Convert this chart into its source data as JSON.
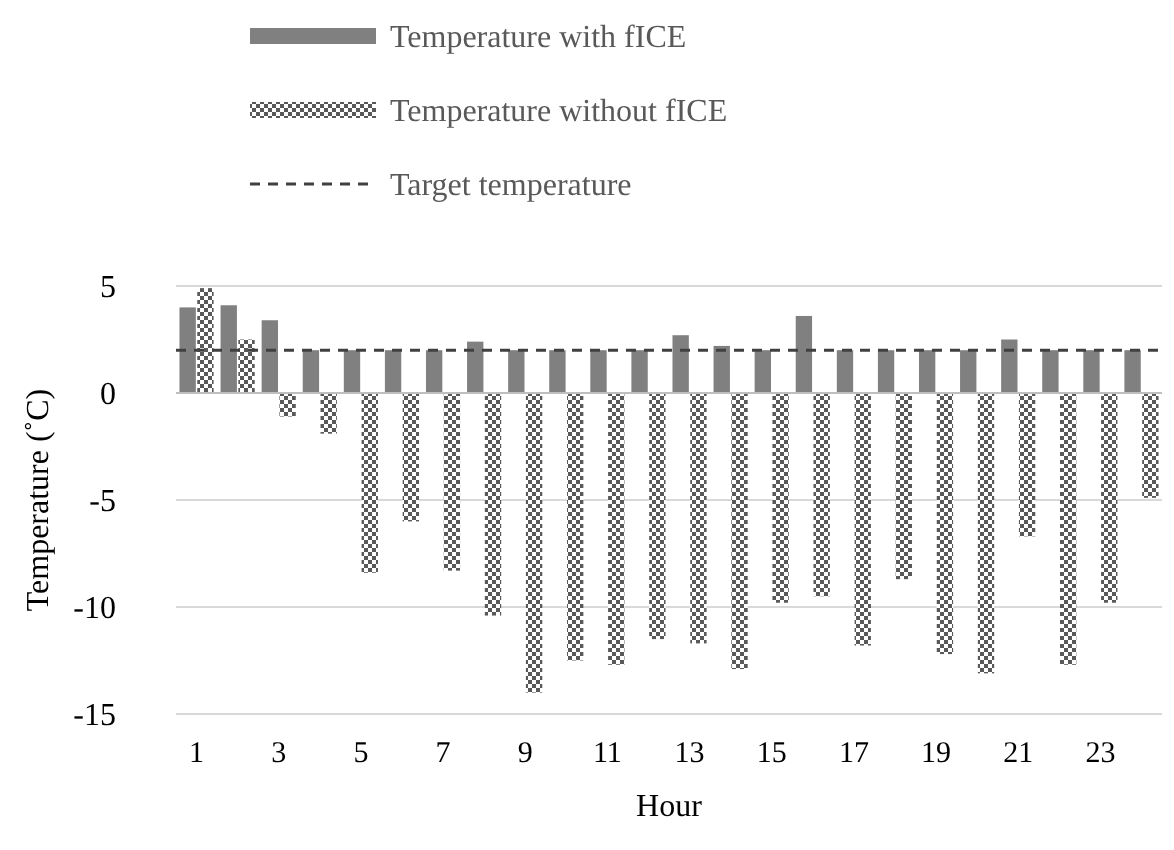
{
  "chart_data": {
    "type": "bar",
    "xlabel": "Hour",
    "ylabel": "Temperature (˚C)",
    "x": [
      1,
      2,
      3,
      4,
      5,
      6,
      7,
      8,
      9,
      10,
      11,
      12,
      13,
      14,
      15,
      16,
      17,
      18,
      19,
      20,
      21,
      22,
      23,
      24
    ],
    "xlim": [
      0.5,
      24.5
    ],
    "xticks": [
      1,
      3,
      5,
      7,
      9,
      11,
      13,
      15,
      17,
      19,
      21,
      23
    ],
    "series": [
      {
        "name": "Temperature with fICE",
        "color": "#808080",
        "values": [
          4.0,
          4.1,
          3.4,
          2.0,
          2.0,
          2.0,
          2.0,
          2.4,
          2.0,
          2.0,
          2.0,
          2.0,
          2.7,
          2.2,
          2.0,
          3.6,
          2.0,
          2.0,
          2.0,
          2.0,
          2.5,
          2.0,
          2.0,
          2.0
        ]
      },
      {
        "name": "Temperature without fICE",
        "color": "#595959",
        "values": [
          4.9,
          2.5,
          -1.1,
          -1.9,
          -8.4,
          -6.0,
          -8.3,
          -10.4,
          -14.0,
          -12.5,
          -12.7,
          -11.5,
          -11.7,
          -12.9,
          -9.8,
          -9.5,
          -11.8,
          -8.7,
          -12.2,
          -13.1,
          -6.7,
          -12.7,
          -9.8,
          -4.9
        ]
      }
    ],
    "ref_lines": [
      {
        "axis": "y",
        "value": 2,
        "label": "Target temperature",
        "color": "#404040",
        "line_style": "dashed"
      }
    ],
    "ylim": [
      -15,
      5
    ],
    "yticks": [
      -15,
      -10,
      -5,
      0,
      5
    ],
    "grid": "y",
    "legend": "top"
  }
}
